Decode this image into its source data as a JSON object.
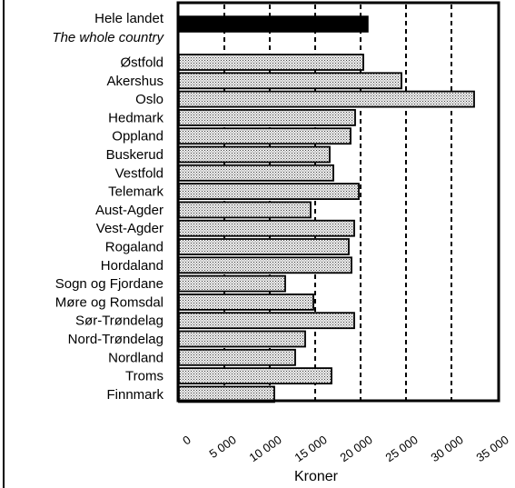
{
  "chart_data": {
    "type": "bar",
    "orientation": "horizontal",
    "xlabel": "Kroner",
    "xlim": [
      0,
      35000
    ],
    "xticks": [
      0,
      5000,
      10000,
      15000,
      20000,
      25000,
      30000,
      35000
    ],
    "xtick_labels": [
      "0",
      "5 000",
      "10 000",
      "15 000",
      "20 000",
      "25 000",
      "30 000",
      "35 000"
    ],
    "grid": "vertical dashed",
    "highlight": {
      "label": "Hele landet",
      "sublabel": "The whole country",
      "value": 20800,
      "color": "#000000"
    },
    "categories": [
      "Østfold",
      "Akershus",
      "Oslo",
      "Hedmark",
      "Oppland",
      "Buskerud",
      "Vestfold",
      "Telemark",
      "Aust-Agder",
      "Vest-Agder",
      "Rogaland",
      "Hordaland",
      "Sogn og Fjordane",
      "Møre og Romsdal",
      "Sør-Trøndelag",
      "Nord-Trøndelag",
      "Nordland",
      "Troms",
      "Finnmark"
    ],
    "values": [
      20300,
      24500,
      32500,
      19400,
      18900,
      16600,
      17000,
      19800,
      14500,
      19300,
      18700,
      19000,
      11700,
      14800,
      19300,
      13900,
      12800,
      16800,
      10500
    ],
    "bar_fill": "stippled grey"
  }
}
